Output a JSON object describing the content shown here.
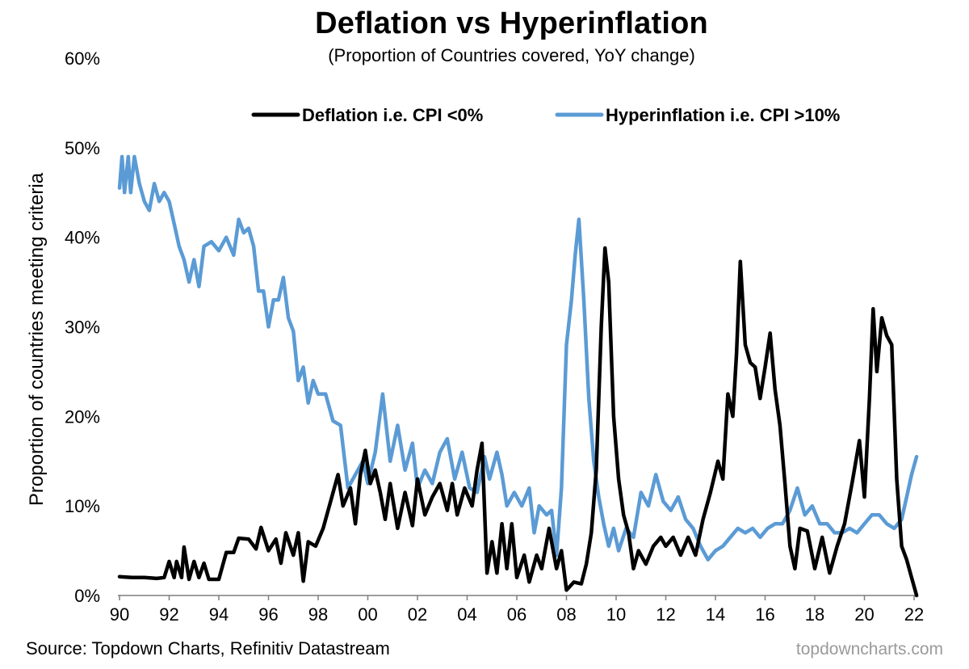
{
  "chart_data": {
    "type": "line",
    "title": "Deflation vs Hyperinflation",
    "subtitle": "(Proportion of Countries covered, YoY change)",
    "ylabel": "Proportion of countries meeting criteria",
    "xlabel": "",
    "source": "Source: Topdown Charts, Refinitiv Datastream",
    "watermark": "topdowncharts.com",
    "ylim": [
      0,
      60
    ],
    "y_ticks": [
      "0%",
      "10%",
      "20%",
      "30%",
      "40%",
      "50%",
      "60%"
    ],
    "xlim": [
      1990,
      2022
    ],
    "x_ticks": [
      "90",
      "92",
      "94",
      "96",
      "98",
      "00",
      "02",
      "04",
      "06",
      "08",
      "10",
      "12",
      "14",
      "16",
      "18",
      "20",
      "22"
    ],
    "legend_position": "top",
    "grid": false,
    "series": [
      {
        "name": "Deflation i.e. CPI <0%",
        "color": "#000000",
        "points": [
          [
            1990.0,
            2.1
          ],
          [
            1990.5,
            2.0
          ],
          [
            1991.0,
            2.0
          ],
          [
            1991.5,
            1.9
          ],
          [
            1991.8,
            2.0
          ],
          [
            1992.0,
            3.8
          ],
          [
            1992.2,
            2.0
          ],
          [
            1992.3,
            3.8
          ],
          [
            1992.5,
            2.0
          ],
          [
            1992.6,
            5.4
          ],
          [
            1992.8,
            1.8
          ],
          [
            1993.0,
            3.8
          ],
          [
            1993.2,
            2.0
          ],
          [
            1993.4,
            3.6
          ],
          [
            1993.6,
            1.8
          ],
          [
            1994.0,
            1.8
          ],
          [
            1994.3,
            4.8
          ],
          [
            1994.6,
            4.8
          ],
          [
            1994.8,
            6.4
          ],
          [
            1995.2,
            6.3
          ],
          [
            1995.5,
            5.2
          ],
          [
            1995.7,
            7.6
          ],
          [
            1996.0,
            5.0
          ],
          [
            1996.3,
            6.3
          ],
          [
            1996.5,
            3.6
          ],
          [
            1996.7,
            7.0
          ],
          [
            1997.0,
            4.5
          ],
          [
            1997.2,
            7.0
          ],
          [
            1997.4,
            1.6
          ],
          [
            1997.6,
            6.0
          ],
          [
            1997.9,
            5.5
          ],
          [
            1998.2,
            7.5
          ],
          [
            1998.5,
            10.5
          ],
          [
            1998.8,
            13.5
          ],
          [
            1999.0,
            10.0
          ],
          [
            1999.3,
            12.0
          ],
          [
            1999.5,
            8.0
          ],
          [
            1999.7,
            13.5
          ],
          [
            1999.9,
            16.2
          ],
          [
            2000.1,
            12.5
          ],
          [
            2000.3,
            14.0
          ],
          [
            2000.5,
            11.5
          ],
          [
            2000.7,
            8.5
          ],
          [
            2000.9,
            12.5
          ],
          [
            2001.2,
            7.5
          ],
          [
            2001.5,
            11.5
          ],
          [
            2001.8,
            7.8
          ],
          [
            2002.0,
            13.0
          ],
          [
            2002.3,
            9.0
          ],
          [
            2002.6,
            11.0
          ],
          [
            2002.9,
            12.5
          ],
          [
            2003.2,
            9.5
          ],
          [
            2003.4,
            12.5
          ],
          [
            2003.6,
            9.0
          ],
          [
            2003.9,
            12.0
          ],
          [
            2004.2,
            10.0
          ],
          [
            2004.4,
            14.0
          ],
          [
            2004.6,
            17.0
          ],
          [
            2004.8,
            2.5
          ],
          [
            2005.0,
            6.0
          ],
          [
            2005.2,
            2.5
          ],
          [
            2005.4,
            8.0
          ],
          [
            2005.6,
            3.0
          ],
          [
            2005.8,
            8.0
          ],
          [
            2006.0,
            2.0
          ],
          [
            2006.3,
            4.5
          ],
          [
            2006.5,
            1.5
          ],
          [
            2006.8,
            4.5
          ],
          [
            2007.0,
            3.0
          ],
          [
            2007.3,
            7.5
          ],
          [
            2007.6,
            3.0
          ],
          [
            2007.8,
            5.0
          ],
          [
            2008.0,
            0.6
          ],
          [
            2008.3,
            1.5
          ],
          [
            2008.6,
            1.3
          ],
          [
            2008.8,
            3.5
          ],
          [
            2009.0,
            7.0
          ],
          [
            2009.2,
            14.0
          ],
          [
            2009.4,
            30.0
          ],
          [
            2009.55,
            38.8
          ],
          [
            2009.7,
            35.0
          ],
          [
            2009.9,
            20.0
          ],
          [
            2010.1,
            13.0
          ],
          [
            2010.3,
            9.0
          ],
          [
            2010.5,
            7.0
          ],
          [
            2010.7,
            3.0
          ],
          [
            2010.9,
            5.0
          ],
          [
            2011.2,
            3.5
          ],
          [
            2011.5,
            5.5
          ],
          [
            2011.8,
            6.5
          ],
          [
            2012.0,
            5.5
          ],
          [
            2012.3,
            6.5
          ],
          [
            2012.6,
            4.5
          ],
          [
            2012.9,
            6.5
          ],
          [
            2013.2,
            4.5
          ],
          [
            2013.5,
            8.5
          ],
          [
            2013.8,
            11.5
          ],
          [
            2014.1,
            15.0
          ],
          [
            2014.3,
            13.0
          ],
          [
            2014.5,
            22.5
          ],
          [
            2014.7,
            20.0
          ],
          [
            2014.85,
            27.0
          ],
          [
            2015.0,
            37.3
          ],
          [
            2015.2,
            28.0
          ],
          [
            2015.4,
            26.0
          ],
          [
            2015.6,
            25.5
          ],
          [
            2015.8,
            22.0
          ],
          [
            2016.0,
            25.5
          ],
          [
            2016.2,
            29.3
          ],
          [
            2016.4,
            23.0
          ],
          [
            2016.6,
            19.0
          ],
          [
            2016.8,
            12.5
          ],
          [
            2017.0,
            5.5
          ],
          [
            2017.2,
            3.0
          ],
          [
            2017.4,
            7.5
          ],
          [
            2017.7,
            7.2
          ],
          [
            2018.0,
            3.0
          ],
          [
            2018.3,
            6.5
          ],
          [
            2018.6,
            2.5
          ],
          [
            2018.9,
            5.5
          ],
          [
            2019.2,
            8.0
          ],
          [
            2019.5,
            12.5
          ],
          [
            2019.8,
            17.3
          ],
          [
            2020.0,
            11.0
          ],
          [
            2020.2,
            22.0
          ],
          [
            2020.35,
            32.0
          ],
          [
            2020.5,
            25.0
          ],
          [
            2020.7,
            31.0
          ],
          [
            2020.9,
            29.0
          ],
          [
            2021.1,
            28.0
          ],
          [
            2021.3,
            13.0
          ],
          [
            2021.5,
            5.5
          ],
          [
            2021.7,
            4.0
          ],
          [
            2021.9,
            2.0
          ],
          [
            2022.1,
            0.0
          ]
        ]
      },
      {
        "name": "Hyperinflation i.e. CPI >10%",
        "color": "#5b9bd5",
        "points": [
          [
            1990.0,
            45.5
          ],
          [
            1990.1,
            49.0
          ],
          [
            1990.2,
            45.0
          ],
          [
            1990.35,
            49.0
          ],
          [
            1990.45,
            45.0
          ],
          [
            1990.6,
            49.0
          ],
          [
            1990.8,
            46.0
          ],
          [
            1991.0,
            44.0
          ],
          [
            1991.2,
            43.0
          ],
          [
            1991.4,
            46.0
          ],
          [
            1991.6,
            44.0
          ],
          [
            1991.8,
            45.0
          ],
          [
            1992.0,
            44.0
          ],
          [
            1992.2,
            41.5
          ],
          [
            1992.4,
            39.0
          ],
          [
            1992.6,
            37.5
          ],
          [
            1992.8,
            35.0
          ],
          [
            1993.0,
            37.5
          ],
          [
            1993.2,
            34.5
          ],
          [
            1993.4,
            39.0
          ],
          [
            1993.7,
            39.5
          ],
          [
            1994.0,
            38.5
          ],
          [
            1994.3,
            40.0
          ],
          [
            1994.6,
            38.0
          ],
          [
            1994.8,
            42.0
          ],
          [
            1995.0,
            40.5
          ],
          [
            1995.2,
            41.0
          ],
          [
            1995.4,
            39.0
          ],
          [
            1995.6,
            34.0
          ],
          [
            1995.8,
            34.0
          ],
          [
            1996.0,
            30.0
          ],
          [
            1996.2,
            33.0
          ],
          [
            1996.4,
            33.0
          ],
          [
            1996.6,
            35.5
          ],
          [
            1996.8,
            31.0
          ],
          [
            1997.0,
            29.5
          ],
          [
            1997.2,
            24.0
          ],
          [
            1997.4,
            25.5
          ],
          [
            1997.6,
            21.5
          ],
          [
            1997.8,
            24.0
          ],
          [
            1998.0,
            22.5
          ],
          [
            1998.3,
            22.5
          ],
          [
            1998.6,
            19.5
          ],
          [
            1998.9,
            19.0
          ],
          [
            1999.2,
            12.0
          ],
          [
            1999.5,
            13.5
          ],
          [
            1999.8,
            15.0
          ],
          [
            2000.0,
            12.5
          ],
          [
            2000.3,
            16.0
          ],
          [
            2000.6,
            22.5
          ],
          [
            2000.9,
            15.0
          ],
          [
            2001.2,
            19.0
          ],
          [
            2001.5,
            14.0
          ],
          [
            2001.8,
            17.0
          ],
          [
            2002.0,
            12.0
          ],
          [
            2002.3,
            14.0
          ],
          [
            2002.6,
            12.5
          ],
          [
            2002.9,
            16.0
          ],
          [
            2003.2,
            17.5
          ],
          [
            2003.5,
            13.0
          ],
          [
            2003.8,
            16.0
          ],
          [
            2004.1,
            12.0
          ],
          [
            2004.4,
            11.5
          ],
          [
            2004.7,
            15.5
          ],
          [
            2004.9,
            13.0
          ],
          [
            2005.2,
            16.0
          ],
          [
            2005.4,
            13.5
          ],
          [
            2005.6,
            10.0
          ],
          [
            2005.9,
            11.5
          ],
          [
            2006.2,
            10.0
          ],
          [
            2006.5,
            12.0
          ],
          [
            2006.7,
            7.0
          ],
          [
            2006.9,
            10.0
          ],
          [
            2007.2,
            9.0
          ],
          [
            2007.4,
            9.5
          ],
          [
            2007.6,
            4.5
          ],
          [
            2007.8,
            12.0
          ],
          [
            2008.0,
            28.0
          ],
          [
            2008.2,
            33.0
          ],
          [
            2008.35,
            38.0
          ],
          [
            2008.5,
            42.0
          ],
          [
            2008.7,
            33.0
          ],
          [
            2008.9,
            22.0
          ],
          [
            2009.1,
            15.0
          ],
          [
            2009.3,
            11.0
          ],
          [
            2009.5,
            8.0
          ],
          [
            2009.7,
            5.5
          ],
          [
            2009.9,
            7.5
          ],
          [
            2010.1,
            5.0
          ],
          [
            2010.4,
            7.5
          ],
          [
            2010.7,
            6.5
          ],
          [
            2011.0,
            11.5
          ],
          [
            2011.3,
            10.0
          ],
          [
            2011.6,
            13.5
          ],
          [
            2011.9,
            10.5
          ],
          [
            2012.2,
            9.5
          ],
          [
            2012.5,
            11.0
          ],
          [
            2012.8,
            8.5
          ],
          [
            2013.1,
            7.5
          ],
          [
            2013.4,
            5.5
          ],
          [
            2013.7,
            4.0
          ],
          [
            2014.0,
            5.0
          ],
          [
            2014.3,
            5.5
          ],
          [
            2014.6,
            6.5
          ],
          [
            2014.9,
            7.5
          ],
          [
            2015.2,
            7.0
          ],
          [
            2015.5,
            7.5
          ],
          [
            2015.8,
            6.5
          ],
          [
            2016.1,
            7.5
          ],
          [
            2016.4,
            8.0
          ],
          [
            2016.7,
            8.0
          ],
          [
            2017.0,
            9.5
          ],
          [
            2017.3,
            12.0
          ],
          [
            2017.6,
            9.0
          ],
          [
            2017.9,
            10.0
          ],
          [
            2018.2,
            8.0
          ],
          [
            2018.5,
            8.0
          ],
          [
            2018.8,
            7.0
          ],
          [
            2019.1,
            7.0
          ],
          [
            2019.4,
            7.5
          ],
          [
            2019.7,
            7.0
          ],
          [
            2020.0,
            8.0
          ],
          [
            2020.3,
            9.0
          ],
          [
            2020.6,
            9.0
          ],
          [
            2020.9,
            8.0
          ],
          [
            2021.2,
            7.5
          ],
          [
            2021.5,
            8.5
          ],
          [
            2021.7,
            11.0
          ],
          [
            2021.9,
            13.5
          ],
          [
            2022.1,
            15.5
          ]
        ]
      }
    ]
  }
}
